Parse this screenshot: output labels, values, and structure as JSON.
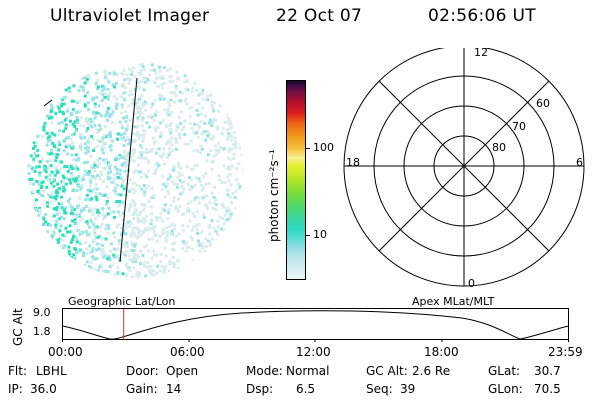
{
  "header": {
    "instrument": "Ultraviolet Imager",
    "date": "22 Oct 07",
    "time": "02:56:06 UT"
  },
  "colorbar": {
    "unit_label": "photon cm⁻²s⁻¹",
    "ticks": [
      "100",
      "10"
    ]
  },
  "polar_plot": {
    "mlt_labels": {
      "top": "12",
      "left": "18",
      "right": "6",
      "bottom": "0"
    },
    "lat_labels": [
      "60",
      "70",
      "80"
    ]
  },
  "timeline": {
    "left_title": "Geographic Lat/Lon",
    "right_title": "Apex MLat/MLT",
    "y_axis_label": "GC Alt",
    "y_ticks": [
      "9.0",
      "1.8"
    ],
    "x_ticks": [
      "00:00",
      "06:00",
      "12:00",
      "18:00",
      "23:59"
    ],
    "current_time_fraction": 0.121
  },
  "footer": {
    "row1": [
      {
        "label": "Flt:",
        "value": "LBHL"
      },
      {
        "label": "Door:",
        "value": "Open"
      },
      {
        "label": "Mode:",
        "value": "Normal"
      },
      {
        "label": "GC Alt:",
        "value": "2.6 Re"
      },
      {
        "label": "GLat:",
        "value": "30.7"
      }
    ],
    "row2": [
      {
        "label": "IP:",
        "value": "36.0"
      },
      {
        "label": "Gain:",
        "value": "14"
      },
      {
        "label": "Dsp:",
        "value": "6.5"
      },
      {
        "label": "Seq:",
        "value": "39"
      },
      {
        "label": "GLon:",
        "value": "70.5"
      }
    ]
  },
  "colors": {
    "background": "#ffffff",
    "marker": "#e0301e",
    "aurora_bright": "#2ee0b8",
    "aurora_mid": "#9ae3e6",
    "aurora_faint": "#d9ecec"
  }
}
